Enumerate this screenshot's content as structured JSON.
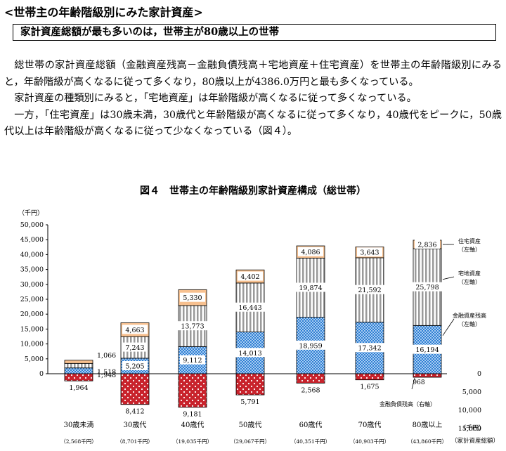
{
  "heading": "<世帯主の年齢階級別にみた家計資産>",
  "summary_box": "家計資産総額が最も多いのは，世帯主が80歳以上の世帯",
  "paragraphs": [
    "総世帯の家計資産総額（金融資産残高－金融負債残高＋宅地資産＋住宅資産）を世帯主の年齢階級別にみると，年齢階級が高くなるに従って多くなり，80歳以上が4386.0万円と最も多くなっている。",
    "家計資産の種類別にみると，「宅地資産」は年齢階級が高くなるに従って多くなっている。",
    "一方，「住宅資産」は30歳未満，30歳代と年齢階級が高くなるに従って多くなり，40歳代をピークに，50歳代以上は年齢階級が高くなるに従って少なくなっている（図４）。"
  ],
  "colors": {
    "housing": "#f7c08f",
    "land": "#a8a8a8",
    "financial": "#4a8fd6",
    "debt": "#c8232c"
  },
  "chart_data": {
    "type": "bar",
    "stacked": true,
    "title": "図４　世帯主の年齢階級別家計資産構成（総世帯）",
    "left_unit": "（千円）",
    "right_unit": "（千円）",
    "right_axis_note": "（家計資産総額）",
    "categories": [
      "30歳未満",
      "30歳代",
      "40歳代",
      "50歳代",
      "60歳代",
      "70歳代",
      "80歳以上"
    ],
    "totals_labels": [
      "（2,568千円）",
      "（8,701千円）",
      "（19,035千円）",
      "（29,067千円）",
      "（40,351千円）",
      "（40,903千円）",
      "（43,860千円）"
    ],
    "series": [
      {
        "key": "financial",
        "name": "金融資産残高",
        "values": [
          1948,
          5205,
          9112,
          14013,
          18959,
          17342,
          16194
        ],
        "labels": [
          "1,948",
          "5,205",
          "9,112",
          "14,013",
          "18,959",
          "17,342",
          "16,194"
        ]
      },
      {
        "key": "land",
        "name": "宅地資産",
        "values": [
          1518,
          7243,
          13773,
          16443,
          19874,
          21592,
          25798
        ],
        "labels": [
          "1,518",
          "7,243",
          "13,773",
          "16,443",
          "19,874",
          "21,592",
          "25,798"
        ]
      },
      {
        "key": "housing",
        "name": "住宅資産",
        "values": [
          1066,
          4663,
          5330,
          4402,
          4086,
          3643,
          2836
        ],
        "labels": [
          "1,066",
          "4,663",
          "5,330",
          "4,402",
          "4,086",
          "3,643",
          "2,836"
        ]
      },
      {
        "key": "debt",
        "name": "金融負債残高",
        "values": [
          1964,
          8412,
          9181,
          5791,
          2568,
          1675,
          968
        ],
        "labels": [
          "1,964",
          "8,412",
          "9,181",
          "5,791",
          "2,568",
          "1,675",
          "968"
        ]
      }
    ],
    "left_axis": {
      "min": 0,
      "max": 50000,
      "step": 5000,
      "ticks": [
        "0",
        "5,000",
        "10,000",
        "15,000",
        "20,000",
        "25,000",
        "30,000",
        "35,000",
        "40,000",
        "45,000",
        "50,000"
      ]
    },
    "right_axis": {
      "min": 0,
      "max": 15000,
      "step": 5000,
      "ticks": [
        "0",
        "5,000",
        "10,000",
        "15,000"
      ]
    },
    "annotations": [
      {
        "key": "housing",
        "text": [
          "住宅資産",
          "（左軸）"
        ]
      },
      {
        "key": "land",
        "text": [
          "宅地資産",
          "（左軸）"
        ]
      },
      {
        "key": "financial",
        "text": [
          "金融資産残高",
          "（左軸）"
        ]
      },
      {
        "key": "debt",
        "text": [
          "金融負債残高（右軸）"
        ]
      }
    ]
  }
}
